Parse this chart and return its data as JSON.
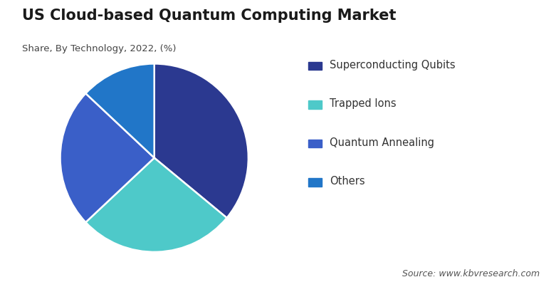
{
  "title": "US Cloud-based Quantum Computing Market",
  "subtitle": "Share, By Technology, 2022, (%)",
  "source": "Source: www.kbvresearch.com",
  "labels": [
    "Superconducting Qubits",
    "Trapped Ions",
    "Quantum Annealing",
    "Others"
  ],
  "values": [
    36,
    27,
    24,
    13
  ],
  "colors": [
    "#2b3990",
    "#4ec9c9",
    "#3a5fc8",
    "#2176c8"
  ],
  "background_color": "#ffffff",
  "title_fontsize": 15,
  "subtitle_fontsize": 9.5,
  "legend_fontsize": 10.5,
  "source_fontsize": 9,
  "start_angle": 90
}
